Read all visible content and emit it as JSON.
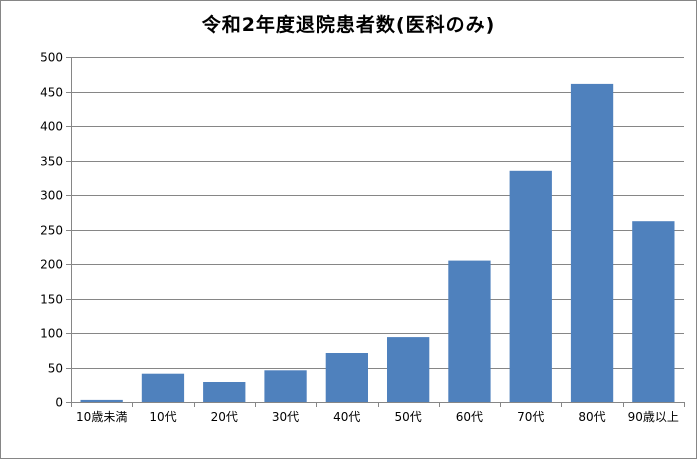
{
  "chart_data": {
    "type": "bar",
    "title": "令和2年度退院患者数(医科のみ)",
    "xlabel": "",
    "ylabel": "",
    "categories": [
      "10歳未満",
      "10代",
      "20代",
      "30代",
      "40代",
      "50代",
      "60代",
      "70代",
      "80代",
      "90歳以上"
    ],
    "values": [
      3,
      41,
      29,
      46,
      71,
      94,
      205,
      335,
      461,
      262
    ],
    "ylim": [
      0,
      500
    ],
    "yticks": [
      0,
      50,
      100,
      150,
      200,
      250,
      300,
      350,
      400,
      450,
      500
    ],
    "grid": true,
    "legend": "none",
    "colors": {
      "bar": "#4f81bd",
      "grid": "#868686",
      "axis": "#868686"
    }
  }
}
